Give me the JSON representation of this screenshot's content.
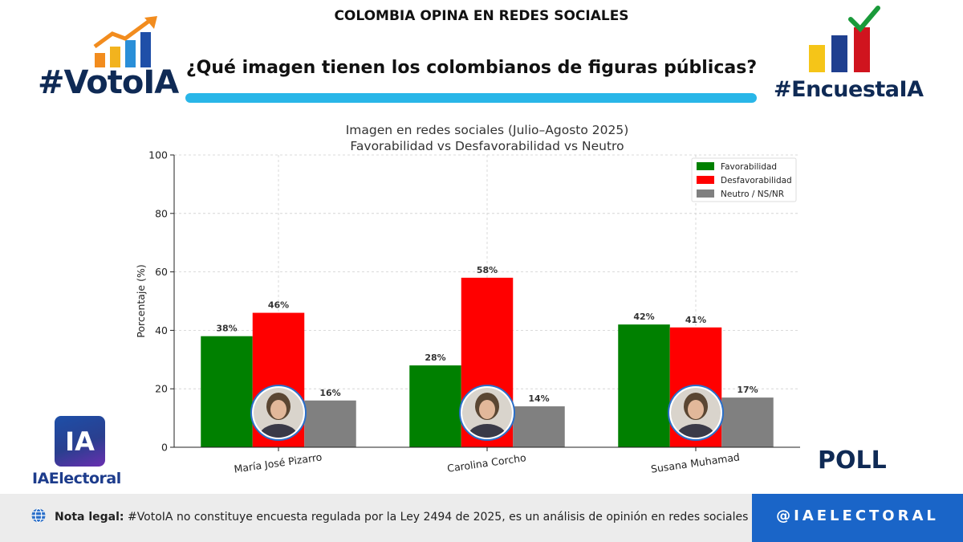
{
  "header": {
    "top_title": "COLOMBIA OPINA EN REDES SOCIALES",
    "question": "¿Qué imagen tienen los colombianos de figuras públicas?",
    "left_brand": "#VotoIA",
    "right_brand": "#EncuestaIA"
  },
  "colors": {
    "favorable": "#008000",
    "unfavorable": "#ff0000",
    "neutral": "#808080",
    "brand_navy": "#0f2a55",
    "accent_bar": "#29b6e8",
    "handle_bg": "#1a65c8"
  },
  "chart_data": {
    "type": "bar",
    "title": "Imagen en redes sociales (Julio–Agosto 2025)",
    "subtitle": "Favorabilidad vs Desfavorabilidad vs Neutro",
    "xlabel": "",
    "ylabel": "Porcentaje (%)",
    "ylim": [
      0,
      100
    ],
    "yticks": [
      "0",
      "20",
      "40",
      "60",
      "80",
      "100"
    ],
    "grid": true,
    "legend_position": "top-right",
    "categories": [
      "María José Pizarro",
      "Carolina Corcho",
      "Susana Muhamad"
    ],
    "series": [
      {
        "name": "Favorabilidad",
        "values": [
          38,
          28,
          42
        ],
        "labels": [
          "38%",
          "28%",
          "42%"
        ]
      },
      {
        "name": "Desfavorabilidad",
        "values": [
          46,
          58,
          41
        ],
        "labels": [
          "46%",
          "58%",
          "41%"
        ]
      },
      {
        "name": "Neutro / NS/NR",
        "values": [
          16,
          14,
          17
        ],
        "labels": [
          "16%",
          "14%",
          "17%"
        ]
      }
    ]
  },
  "branding": {
    "ia_logo": "IA",
    "ia_name": "IAElectoral",
    "poll": "POLL"
  },
  "footer": {
    "legal_label": "Nota legal:",
    "legal_text": " #VotoIA no constituye encuesta regulada por la Ley 2494 de 2025, es un análisis de opinión en redes sociales con IA.",
    "handle": "@IAELECTORAL",
    "globe_icon": "globe-icon"
  }
}
